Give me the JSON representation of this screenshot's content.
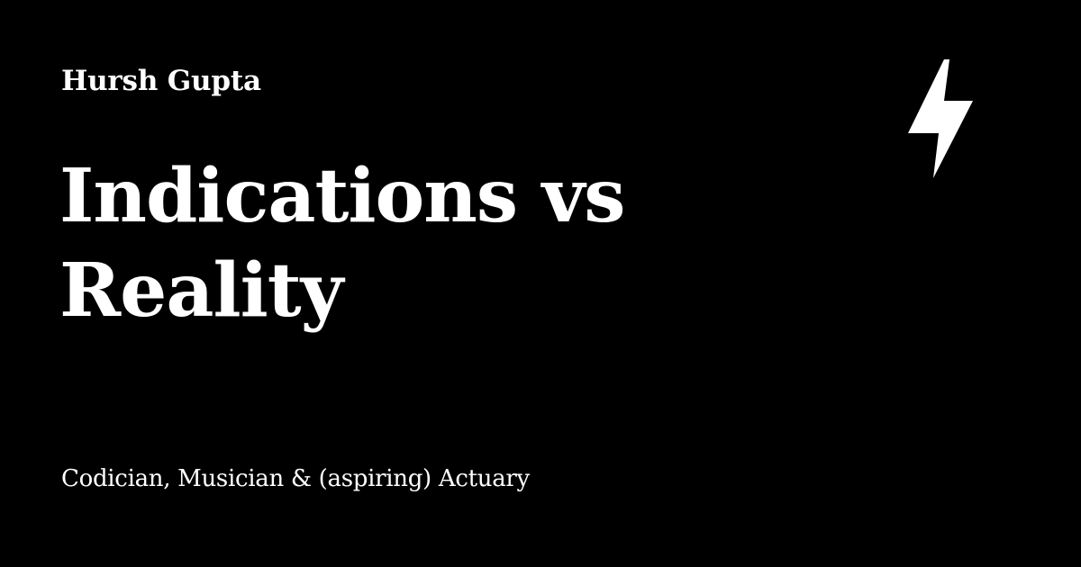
{
  "card": {
    "author": "Hursh Gupta",
    "title": "Indications vs Reality",
    "subtitle": "Codician, Musician & (aspiring) Actuary",
    "icon": "lightning-bolt-icon"
  },
  "colors": {
    "background": "#000000",
    "text": "#ffffff",
    "icon": "#ffffff"
  }
}
